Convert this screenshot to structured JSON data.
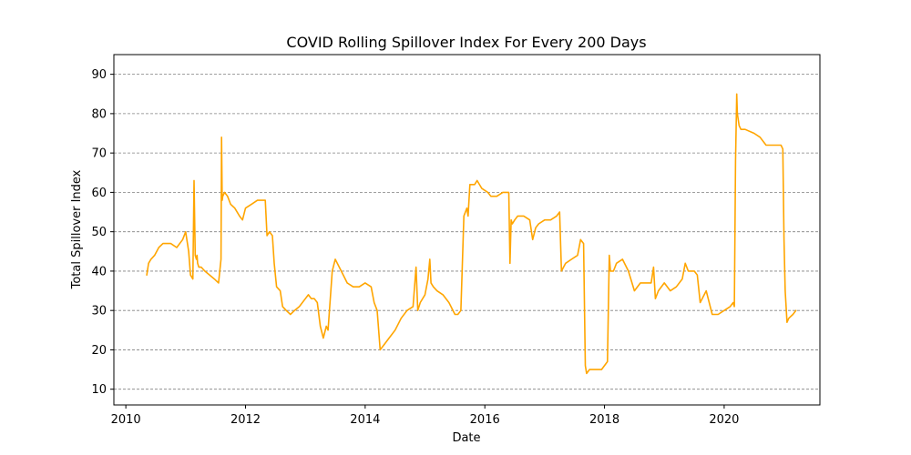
{
  "chart_data": {
    "type": "line",
    "title": "COVID Rolling Spillover Index For Every 200 Days",
    "xlabel": "Date",
    "ylabel": "Total Spillover Index",
    "xlim": [
      2009.8,
      2021.6
    ],
    "ylim": [
      6,
      95
    ],
    "x_ticks": [
      2010,
      2012,
      2014,
      2016,
      2018,
      2020
    ],
    "x_tick_labels": [
      "2010",
      "2012",
      "2014",
      "2016",
      "2018",
      "2020"
    ],
    "y_ticks": [
      10,
      20,
      30,
      40,
      50,
      60,
      70,
      80,
      90
    ],
    "y_tick_labels": [
      "10",
      "20",
      "30",
      "40",
      "50",
      "60",
      "70",
      "80",
      "90"
    ],
    "grid": "y-dashed",
    "line_color": "#ffa500",
    "series": [
      {
        "x": [
          2010.35,
          2010.38,
          2010.42,
          2010.48,
          2010.55,
          2010.62,
          2010.68,
          2010.75,
          2010.85,
          2010.95,
          2011.0,
          2011.05,
          2011.08,
          2011.12,
          2011.14,
          2011.16,
          2011.18,
          2011.19,
          2011.2,
          2011.22,
          2011.26,
          2011.32,
          2011.4,
          2011.48,
          2011.55,
          2011.59,
          2011.6,
          2011.61,
          2011.62,
          2011.65,
          2011.7,
          2011.75,
          2011.82,
          2011.9,
          2011.95,
          2012.0,
          2012.1,
          2012.2,
          2012.3,
          2012.33,
          2012.36,
          2012.4,
          2012.45,
          2012.48,
          2012.52,
          2012.58,
          2012.62,
          2012.68,
          2012.75,
          2012.82,
          2012.9,
          2013.0,
          2013.05,
          2013.1,
          2013.15,
          2013.2,
          2013.25,
          2013.3,
          2013.35,
          2013.38,
          2013.45,
          2013.5,
          2013.6,
          2013.7,
          2013.8,
          2013.9,
          2014.0,
          2014.1,
          2014.15,
          2014.2,
          2014.25,
          2014.3,
          2014.4,
          2014.5,
          2014.6,
          2014.7,
          2014.8,
          2014.85,
          2014.88,
          2014.92,
          2015.0,
          2015.05,
          2015.08,
          2015.1,
          2015.14,
          2015.2,
          2015.3,
          2015.4,
          2015.5,
          2015.55,
          2015.6,
          2015.65,
          2015.7,
          2015.72,
          2015.75,
          2015.8,
          2015.83,
          2015.87,
          2015.95,
          2016.05,
          2016.1,
          2016.2,
          2016.3,
          2016.35,
          2016.4,
          2016.42,
          2016.44,
          2016.46,
          2016.5,
          2016.55,
          2016.65,
          2016.75,
          2016.8,
          2016.85,
          2016.9,
          2017.0,
          2017.1,
          2017.2,
          2017.25,
          2017.28,
          2017.35,
          2017.45,
          2017.55,
          2017.6,
          2017.65,
          2017.68,
          2017.7,
          2017.75,
          2017.85,
          2017.95,
          2018.05,
          2018.08,
          2018.1,
          2018.15,
          2018.2,
          2018.3,
          2018.4,
          2018.5,
          2018.6,
          2018.7,
          2018.78,
          2018.82,
          2018.85,
          2018.9,
          2019.0,
          2019.1,
          2019.2,
          2019.3,
          2019.35,
          2019.4,
          2019.5,
          2019.55,
          2019.6,
          2019.7,
          2019.8,
          2019.9,
          2020.0,
          2020.1,
          2020.15,
          2020.17,
          2020.19,
          2020.21,
          2020.22,
          2020.25,
          2020.28,
          2020.35,
          2020.5,
          2020.6,
          2020.7,
          2020.8,
          2020.9,
          2020.95,
          2020.98,
          2021.0,
          2021.02,
          2021.05,
          2021.08,
          2021.15,
          2021.2
        ],
        "y": [
          39,
          42,
          43,
          44,
          46,
          47,
          47,
          47,
          46,
          48,
          50,
          45,
          39,
          38,
          63,
          44,
          43,
          44,
          42,
          41,
          41,
          40,
          39,
          38,
          37,
          43,
          74,
          58,
          59,
          60,
          59,
          57,
          56,
          54,
          53,
          56,
          57,
          58,
          58,
          58,
          49,
          50,
          49,
          42,
          36,
          35,
          31,
          30,
          29,
          30,
          31,
          33,
          34,
          33,
          33,
          32,
          26,
          23,
          26,
          25,
          40,
          43,
          40,
          37,
          36,
          36,
          37,
          36,
          32,
          30,
          20,
          21,
          23,
          25,
          28,
          30,
          31,
          41,
          30,
          32,
          34,
          38,
          43,
          37,
          36,
          35,
          34,
          32,
          29,
          29,
          30,
          54,
          56,
          54,
          62,
          62,
          62,
          63,
          61,
          60,
          59,
          59,
          60,
          60,
          60,
          42,
          53,
          52,
          53,
          54,
          54,
          53,
          48,
          51,
          52,
          53,
          53,
          54,
          55,
          40,
          42,
          43,
          44,
          48,
          47,
          16,
          14,
          15,
          15,
          15,
          17,
          44,
          40,
          40,
          42,
          43,
          40,
          35,
          37,
          37,
          37,
          41,
          33,
          35,
          37,
          35,
          36,
          38,
          42,
          40,
          40,
          39,
          32,
          35,
          29,
          29,
          30,
          31,
          32,
          31,
          68,
          85,
          80,
          77,
          76,
          76,
          75,
          74,
          72,
          72,
          72,
          72,
          71,
          48,
          35,
          27,
          28,
          29,
          30
        ]
      }
    ]
  }
}
